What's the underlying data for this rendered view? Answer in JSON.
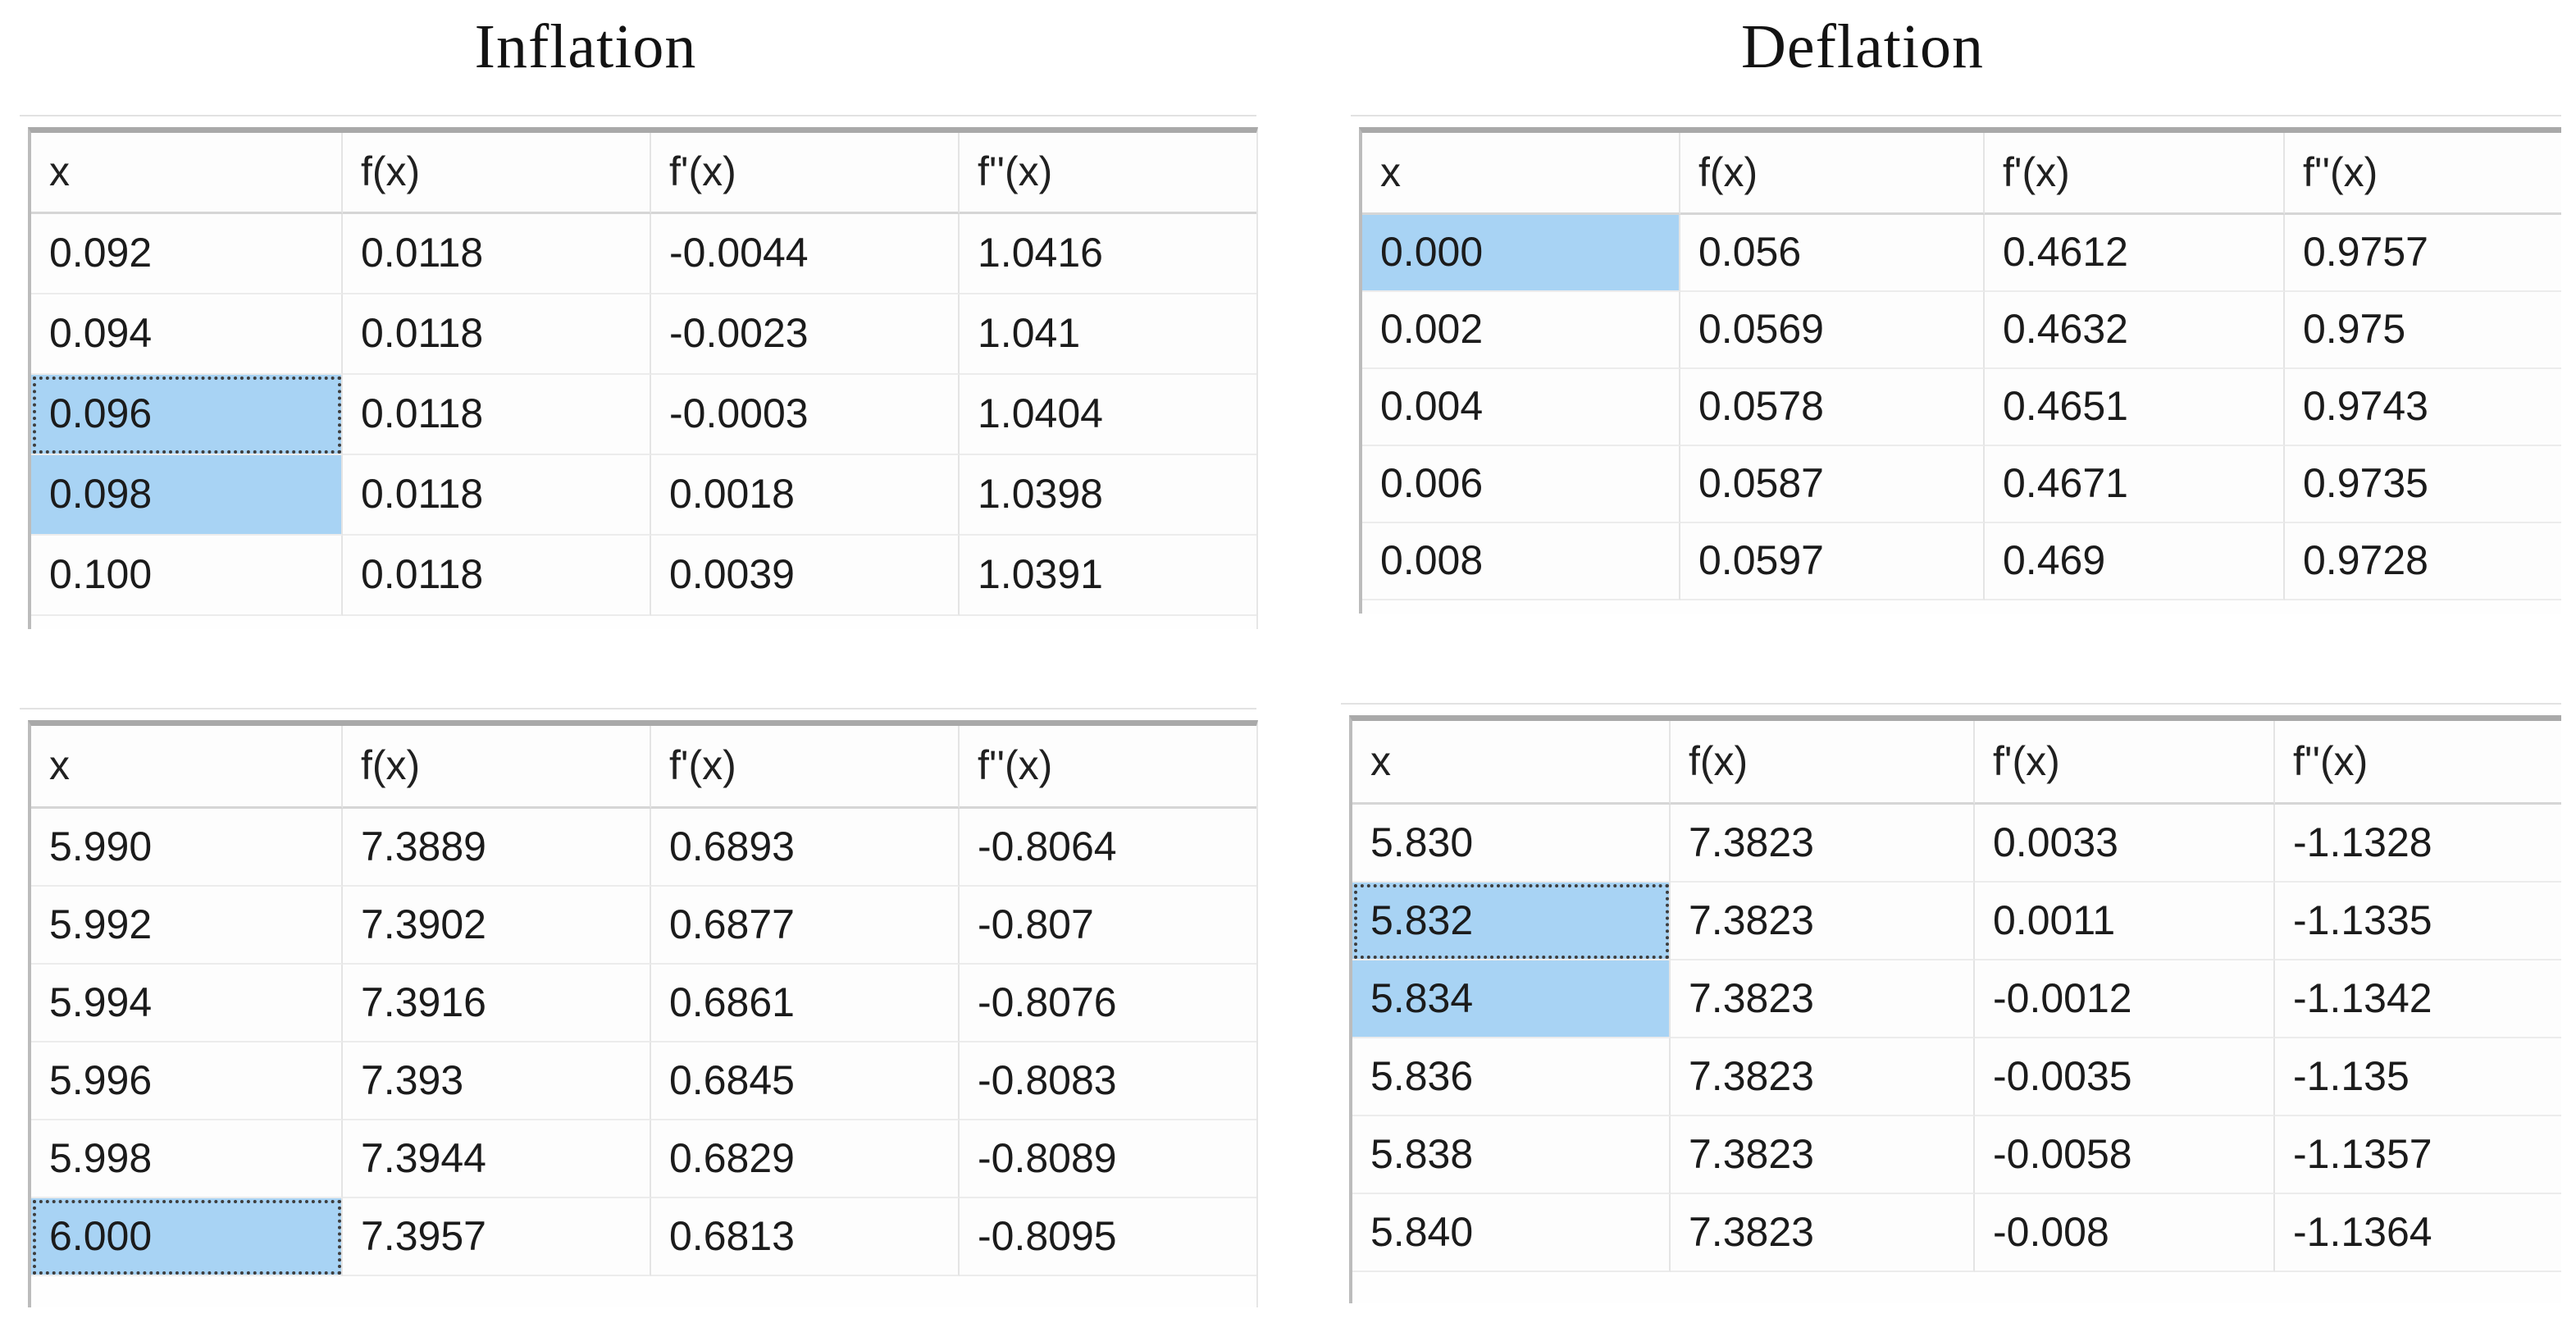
{
  "titles": {
    "left": "Inflation",
    "right": "Deflation"
  },
  "colors": {
    "selection_highlight": "#a8d3f4",
    "focus_dotted_border": "#3d3d3d",
    "table_top_border": "#a9a9a9",
    "table_side_border": "#bcbcbc",
    "grid_line": "#ececec",
    "column_separator": "#e4e4e4",
    "header_underline": "#d6d6d6",
    "text": "#1b1b1b",
    "background": "#ffffff"
  },
  "tables": {
    "inflation_top": {
      "headers": [
        "x",
        "f(x)",
        "f'(x)",
        "f''(x)"
      ],
      "rows": [
        {
          "x_state": "none",
          "cells": [
            "0.092",
            "0.0118",
            "-0.0044",
            "1.0416"
          ]
        },
        {
          "x_state": "none",
          "cells": [
            "0.094",
            "0.0118",
            "-0.0023",
            "1.041"
          ]
        },
        {
          "x_state": "focus",
          "cells": [
            "0.096",
            "0.0118",
            "-0.0003",
            "1.0404"
          ]
        },
        {
          "x_state": "selected",
          "cells": [
            "0.098",
            "0.0118",
            "0.0018",
            "1.0398"
          ]
        },
        {
          "x_state": "none",
          "cells": [
            "0.100",
            "0.0118",
            "0.0039",
            "1.0391"
          ]
        }
      ]
    },
    "deflation_top": {
      "headers": [
        "x",
        "f(x)",
        "f'(x)",
        "f''(x)"
      ],
      "rows": [
        {
          "x_state": "selected",
          "cells": [
            "0.000",
            "0.056",
            "0.4612",
            "0.9757"
          ]
        },
        {
          "x_state": "none",
          "cells": [
            "0.002",
            "0.0569",
            "0.4632",
            "0.975"
          ]
        },
        {
          "x_state": "none",
          "cells": [
            "0.004",
            "0.0578",
            "0.4651",
            "0.9743"
          ]
        },
        {
          "x_state": "none",
          "cells": [
            "0.006",
            "0.0587",
            "0.4671",
            "0.9735"
          ]
        },
        {
          "x_state": "none",
          "cells": [
            "0.008",
            "0.0597",
            "0.469",
            "0.9728"
          ]
        }
      ]
    },
    "inflation_bottom": {
      "headers": [
        "x",
        "f(x)",
        "f'(x)",
        "f''(x)"
      ],
      "rows": [
        {
          "x_state": "none",
          "cells": [
            "5.990",
            "7.3889",
            "0.6893",
            "-0.8064"
          ]
        },
        {
          "x_state": "none",
          "cells": [
            "5.992",
            "7.3902",
            "0.6877",
            "-0.807"
          ]
        },
        {
          "x_state": "none",
          "cells": [
            "5.994",
            "7.3916",
            "0.6861",
            "-0.8076"
          ]
        },
        {
          "x_state": "none",
          "cells": [
            "5.996",
            "7.393",
            "0.6845",
            "-0.8083"
          ]
        },
        {
          "x_state": "none",
          "cells": [
            "5.998",
            "7.3944",
            "0.6829",
            "-0.8089"
          ]
        },
        {
          "x_state": "focus",
          "cells": [
            "6.000",
            "7.3957",
            "0.6813",
            "-0.8095"
          ]
        }
      ]
    },
    "deflation_bottom": {
      "headers": [
        "x",
        "f(x)",
        "f'(x)",
        "f''(x)"
      ],
      "rows": [
        {
          "x_state": "none",
          "cells": [
            "5.830",
            "7.3823",
            "0.0033",
            "-1.1328"
          ]
        },
        {
          "x_state": "focus",
          "cells": [
            "5.832",
            "7.3823",
            "0.0011",
            "-1.1335"
          ]
        },
        {
          "x_state": "selected",
          "cells": [
            "5.834",
            "7.3823",
            "-0.0012",
            "-1.1342"
          ]
        },
        {
          "x_state": "none",
          "cells": [
            "5.836",
            "7.3823",
            "-0.0035",
            "-1.135"
          ]
        },
        {
          "x_state": "none",
          "cells": [
            "5.838",
            "7.3823",
            "-0.0058",
            "-1.1357"
          ]
        },
        {
          "x_state": "none",
          "cells": [
            "5.840",
            "7.3823",
            "-0.008",
            "-1.1364"
          ]
        }
      ]
    }
  }
}
